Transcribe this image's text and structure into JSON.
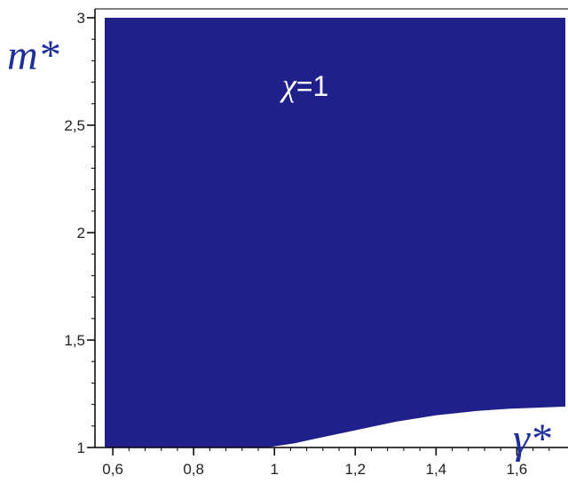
{
  "chart_data": {
    "type": "area",
    "title": "",
    "xlabel": "γ*",
    "ylabel": "m*",
    "xlim": [
      0.58,
      1.72
    ],
    "ylim": [
      1.0,
      3.0
    ],
    "x_ticks": [
      0.6,
      0.8,
      1.0,
      1.2,
      1.4,
      1.6
    ],
    "x_tick_labels": [
      "0,6",
      "0,8",
      "1",
      "1,2",
      "1,4",
      "1,6"
    ],
    "y_ticks": [
      1.0,
      1.5,
      2.0,
      2.5,
      3.0
    ],
    "y_tick_labels": [
      "1",
      "1,5",
      "2",
      "2,5",
      "3"
    ],
    "fill_color": "#20208a",
    "annotation": {
      "symbol": "χ",
      "text": "=1"
    },
    "boundary": {
      "name": "",
      "x": [
        0.58,
        0.98,
        1.05,
        1.1,
        1.2,
        1.3,
        1.4,
        1.5,
        1.58,
        1.72
      ],
      "y": [
        1.0,
        1.0,
        1.02,
        1.04,
        1.08,
        1.12,
        1.15,
        1.17,
        1.18,
        1.19
      ]
    }
  }
}
